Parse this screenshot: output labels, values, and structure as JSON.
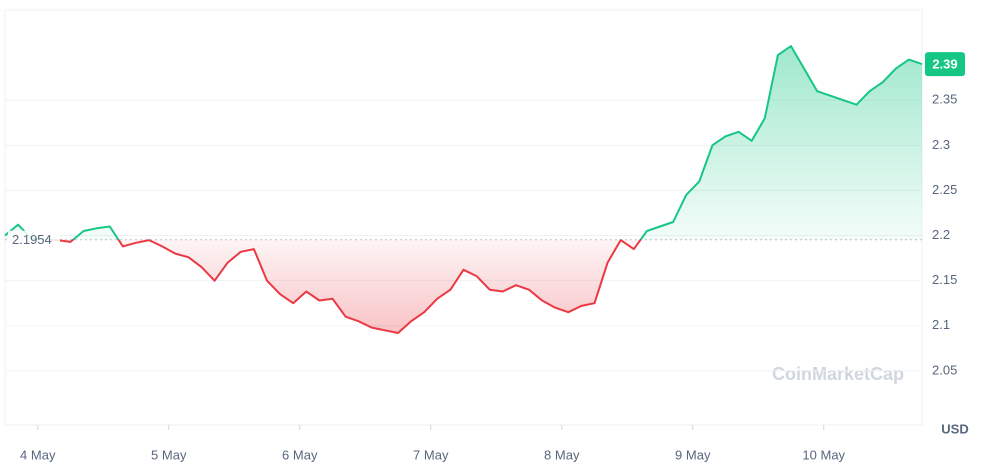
{
  "chart_data": {
    "type": "baseline-line",
    "reference": 2.1954,
    "last_price": 2.39,
    "currency": "USD",
    "watermark": "CoinMarketCap",
    "up_color": "#16c784",
    "down_color": "#ea3943",
    "grid": true,
    "xlim": [
      3.75,
      10.75
    ],
    "xticks": [
      {
        "value": 4,
        "label": "4 May"
      },
      {
        "value": 5,
        "label": "5 May"
      },
      {
        "value": 6,
        "label": "6 May"
      },
      {
        "value": 7,
        "label": "7 May"
      },
      {
        "value": 8,
        "label": "8 May"
      },
      {
        "value": 9,
        "label": "9 May"
      },
      {
        "value": 10,
        "label": "10 May"
      }
    ],
    "ylim": [
      1.99,
      2.45
    ],
    "yticks": [
      2.05,
      2.1,
      2.15,
      2.2,
      2.25,
      2.3,
      2.35
    ],
    "x": [
      3.75,
      3.85,
      3.95,
      4.05,
      4.15,
      4.25,
      4.35,
      4.45,
      4.55,
      4.65,
      4.75,
      4.85,
      4.95,
      5.05,
      5.15,
      5.25,
      5.35,
      5.45,
      5.55,
      5.65,
      5.75,
      5.85,
      5.95,
      6.05,
      6.15,
      6.25,
      6.35,
      6.45,
      6.55,
      6.65,
      6.75,
      6.85,
      6.95,
      7.05,
      7.15,
      7.25,
      7.35,
      7.45,
      7.55,
      7.65,
      7.75,
      7.85,
      7.95,
      8.05,
      8.15,
      8.25,
      8.35,
      8.45,
      8.55,
      8.65,
      8.75,
      8.85,
      8.95,
      9.05,
      9.15,
      9.25,
      9.35,
      9.45,
      9.55,
      9.65,
      9.75,
      9.85,
      9.95,
      10.05,
      10.15,
      10.25,
      10.35,
      10.45,
      10.55,
      10.65,
      10.75
    ],
    "values": [
      2.2,
      2.212,
      2.197,
      2.196,
      2.195,
      2.193,
      2.205,
      2.208,
      2.21,
      2.188,
      2.192,
      2.195,
      2.188,
      2.18,
      2.176,
      2.165,
      2.15,
      2.17,
      2.182,
      2.185,
      2.15,
      2.135,
      2.125,
      2.138,
      2.128,
      2.13,
      2.11,
      2.105,
      2.098,
      2.095,
      2.092,
      2.105,
      2.115,
      2.13,
      2.14,
      2.162,
      2.155,
      2.14,
      2.138,
      2.145,
      2.14,
      2.128,
      2.12,
      2.115,
      2.122,
      2.125,
      2.17,
      2.195,
      2.185,
      2.205,
      2.21,
      2.215,
      2.245,
      2.26,
      2.3,
      2.31,
      2.315,
      2.305,
      2.33,
      2.4,
      2.41,
      2.385,
      2.36,
      2.355,
      2.35,
      2.345,
      2.36,
      2.37,
      2.385,
      2.395,
      2.39
    ]
  }
}
